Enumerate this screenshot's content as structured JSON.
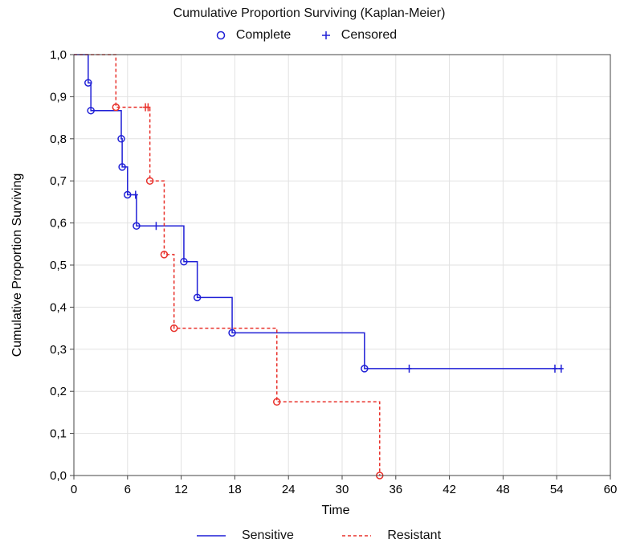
{
  "chart_data": {
    "type": "line",
    "title": "Cumulative Proportion Surviving (Kaplan-Meier)",
    "xlabel": "Time",
    "ylabel": "Cumulative Proportion Surviving",
    "xlim": [
      0,
      60
    ],
    "ylim": [
      0,
      1
    ],
    "x_ticks": [
      "0",
      "6",
      "12",
      "18",
      "24",
      "30",
      "36",
      "42",
      "48",
      "54",
      "60"
    ],
    "y_ticks": [
      "0,0",
      "0,1",
      "0,2",
      "0,3",
      "0,4",
      "0,5",
      "0,6",
      "0,7",
      "0,8",
      "0,9",
      "1,0"
    ],
    "grid": true,
    "marker_legend": {
      "complete": "Complete",
      "censored": "Censored"
    },
    "series": [
      {
        "name": "Sensitive",
        "color": "#1f1fd6",
        "line_style": "solid",
        "steps": [
          [
            0,
            1.0
          ],
          [
            1.6,
            0.933
          ],
          [
            1.9,
            0.867
          ],
          [
            5.3,
            0.8
          ],
          [
            5.4,
            0.733
          ],
          [
            6.0,
            0.667
          ],
          [
            7.0,
            0.593
          ],
          [
            12.3,
            0.508
          ],
          [
            13.8,
            0.423
          ],
          [
            17.7,
            0.339
          ],
          [
            32.5,
            0.254
          ]
        ],
        "end_x": 54.5,
        "events": [
          [
            1.6,
            0.933
          ],
          [
            1.9,
            0.867
          ],
          [
            5.3,
            0.8
          ],
          [
            5.4,
            0.733
          ],
          [
            6.0,
            0.667
          ],
          [
            7.0,
            0.593
          ],
          [
            12.3,
            0.508
          ],
          [
            13.8,
            0.423
          ],
          [
            17.7,
            0.339
          ],
          [
            32.5,
            0.254
          ]
        ],
        "censored": [
          [
            6.9,
            0.667
          ],
          [
            9.2,
            0.593
          ],
          [
            37.5,
            0.254
          ],
          [
            53.8,
            0.254
          ],
          [
            54.5,
            0.254
          ]
        ]
      },
      {
        "name": "Resistant",
        "color": "#e8302a",
        "line_style": "dashed",
        "steps": [
          [
            0,
            1.0
          ],
          [
            4.7,
            0.875
          ],
          [
            8.5,
            0.7
          ],
          [
            10.1,
            0.525
          ],
          [
            11.2,
            0.35
          ],
          [
            22.7,
            0.175
          ],
          [
            34.2,
            0.0
          ]
        ],
        "end_x": 34.2,
        "events": [
          [
            4.7,
            0.875
          ],
          [
            8.5,
            0.7
          ],
          [
            10.1,
            0.525
          ],
          [
            11.2,
            0.35
          ],
          [
            22.7,
            0.175
          ],
          [
            34.2,
            0.0
          ]
        ],
        "censored": [
          [
            8.0,
            0.875
          ],
          [
            8.3,
            0.875
          ]
        ]
      }
    ]
  }
}
